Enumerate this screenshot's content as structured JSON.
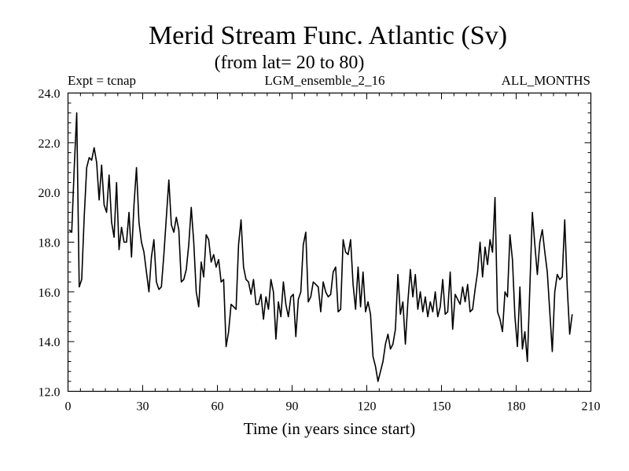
{
  "chart_data": {
    "type": "line",
    "title": "Merid Stream Func. Atlantic (Sv)",
    "subtitle": "(from lat= 20 to 80)",
    "header_left": "Expt = tcnap",
    "header_center": "LGM_ensemble_2_16",
    "header_right": "ALL_MONTHS",
    "xlabel": "Time (in years since start)",
    "ylabel": "",
    "xlim": [
      0,
      210
    ],
    "ylim": [
      12.0,
      24.0
    ],
    "x_ticks": [
      0,
      30,
      60,
      90,
      120,
      150,
      180,
      210
    ],
    "x_tick_labels": [
      "0",
      "30",
      "60",
      "90",
      "120",
      "150",
      "180",
      "210"
    ],
    "y_ticks": [
      12,
      14,
      16,
      18,
      20,
      22,
      24
    ],
    "y_tick_labels": [
      "12.0",
      "14.0",
      "16.0",
      "18.0",
      "20.0",
      "22.0",
      "24.0"
    ],
    "grid": false,
    "color": "#000000",
    "series": [
      {
        "name": "Merid Stream Func. Atlantic",
        "x_start": 0.5,
        "x_step": 1,
        "values": [
          18.5,
          18.4,
          21.0,
          23.2,
          16.2,
          16.5,
          19.0,
          21.0,
          21.4,
          21.3,
          21.8,
          21.2,
          19.7,
          21.1,
          19.5,
          19.2,
          20.7,
          18.8,
          18.2,
          20.4,
          17.7,
          18.6,
          18.0,
          18.0,
          19.2,
          17.4,
          19.5,
          21.0,
          18.8,
          18.0,
          17.6,
          16.8,
          16.0,
          17.4,
          18.1,
          16.4,
          16.1,
          16.2,
          17.5,
          19.0,
          20.5,
          18.7,
          18.4,
          19.0,
          18.5,
          16.4,
          16.5,
          16.9,
          17.9,
          19.4,
          18.0,
          16.0,
          15.4,
          17.2,
          16.6,
          18.3,
          18.1,
          17.2,
          17.5,
          17.0,
          17.3,
          16.4,
          16.5,
          13.8,
          14.4,
          15.5,
          15.4,
          15.3,
          17.9,
          18.9,
          17.0,
          16.5,
          16.4,
          15.9,
          16.5,
          15.5,
          15.5,
          15.9,
          14.9,
          15.8,
          15.3,
          16.5,
          16.0,
          14.1,
          15.6,
          15.0,
          16.4,
          15.5,
          15.0,
          15.8,
          15.9,
          14.2,
          15.7,
          16.0,
          17.9,
          18.4,
          15.6,
          15.8,
          16.4,
          16.3,
          16.2,
          15.2,
          16.4,
          16.0,
          15.8,
          15.9,
          16.8,
          17.0,
          15.2,
          15.3,
          18.1,
          17.6,
          17.5,
          18.1,
          16.3,
          15.3,
          17.0,
          15.4,
          16.8,
          15.2,
          15.6,
          15.1,
          13.4,
          13.0,
          12.4,
          12.8,
          13.2,
          13.9,
          14.3,
          13.7,
          13.9,
          14.5,
          16.7,
          15.1,
          15.6,
          13.9,
          15.6,
          16.9,
          15.8,
          16.7,
          15.3,
          16.0,
          15.2,
          15.8,
          15.0,
          15.6,
          15.2,
          16.0,
          15.0,
          15.4,
          16.5,
          15.1,
          15.2,
          16.8,
          14.5,
          15.9,
          15.7,
          15.5,
          16.2,
          15.6,
          16.3,
          15.2,
          15.3,
          16.1,
          16.8,
          18.0,
          16.6,
          17.8,
          17.1,
          18.1,
          17.6,
          19.8,
          15.2,
          14.9,
          14.4,
          16.0,
          15.8,
          18.3,
          17.3,
          15.0,
          13.8,
          16.2,
          13.7,
          14.4,
          13.2,
          16.2,
          19.2,
          17.9,
          16.7,
          18.0,
          18.5,
          17.6,
          16.8,
          15.2,
          13.6,
          16.0,
          16.7,
          16.5,
          16.6,
          18.9,
          16.2,
          14.3,
          15.1
        ]
      }
    ]
  }
}
